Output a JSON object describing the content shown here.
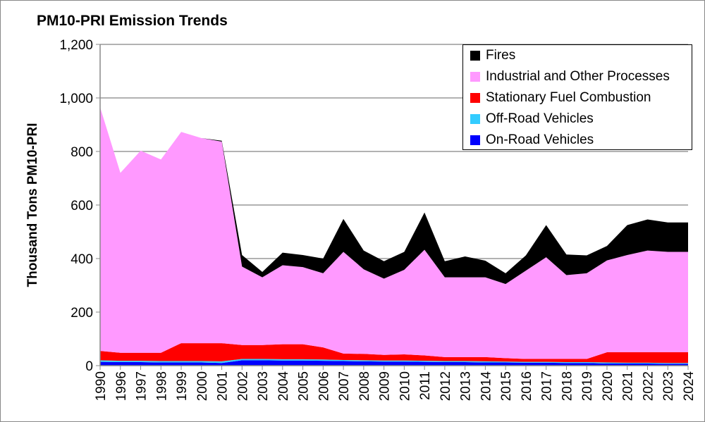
{
  "chart_data": {
    "type": "area",
    "stacked": true,
    "title": "PM10-PRI Emission Trends",
    "xlabel": "",
    "ylabel": "Thousand Tons PM10-PRI",
    "ylim": [
      0,
      1200
    ],
    "yticks": [
      "0",
      "200",
      "400",
      "600",
      "800",
      "1,000",
      "1,200"
    ],
    "ytick_values": [
      0,
      200,
      400,
      600,
      800,
      1000,
      1200
    ],
    "grid": true,
    "legend_position": "top-right",
    "categories": [
      "1990",
      "1996",
      "1997",
      "1998",
      "1999",
      "2000",
      "2001",
      "2002",
      "2003",
      "2004",
      "2005",
      "2006",
      "2007",
      "2008",
      "2009",
      "2010",
      "2011",
      "2012",
      "2013",
      "2014",
      "2015",
      "2016",
      "2017",
      "2018",
      "2019",
      "2020",
      "2021",
      "2022",
      "2023",
      "2024"
    ],
    "series": [
      {
        "name": "On-Road Vehicles",
        "color": "#0000FF",
        "values": [
          14,
          13,
          13,
          12,
          12,
          12,
          10,
          20,
          20,
          19,
          19,
          18,
          17,
          16,
          15,
          15,
          14,
          13,
          13,
          12,
          12,
          11,
          11,
          10,
          10,
          8,
          8,
          8,
          7,
          7
        ]
      },
      {
        "name": "Off-Road Vehicles",
        "color": "#33CCFF",
        "values": [
          6,
          5,
          5,
          5,
          5,
          5,
          6,
          5,
          5,
          5,
          5,
          5,
          4,
          4,
          4,
          4,
          4,
          4,
          4,
          4,
          3,
          3,
          3,
          3,
          3,
          4,
          3,
          3,
          3,
          3
        ]
      },
      {
        "name": "Stationary Fuel Combustion",
        "color": "#FF0000",
        "values": [
          35,
          30,
          30,
          31,
          67,
          67,
          68,
          52,
          52,
          56,
          56,
          45,
          24,
          24,
          21,
          23,
          20,
          15,
          15,
          16,
          13,
          11,
          11,
          12,
          12,
          38,
          39,
          39,
          40,
          40
        ]
      },
      {
        "name": "Industrial and Other Processes",
        "color": "#FF99FF",
        "values": [
          910,
          672,
          755,
          722,
          789,
          766,
          753,
          293,
          253,
          295,
          288,
          277,
          380,
          316,
          285,
          316,
          395,
          298,
          298,
          298,
          277,
          330,
          380,
          313,
          320,
          343,
          363,
          380,
          375,
          375
        ]
      },
      {
        "name": "Fires",
        "color": "#000000",
        "values": [
          0,
          0,
          0,
          0,
          0,
          0,
          3,
          43,
          20,
          47,
          45,
          55,
          123,
          70,
          65,
          67,
          139,
          60,
          78,
          62,
          40,
          57,
          120,
          77,
          67,
          54,
          112,
          116,
          110,
          110
        ]
      }
    ],
    "legend_order": [
      "Fires",
      "Industrial and Other Processes",
      "Stationary Fuel Combustion",
      "Off-Road Vehicles",
      "On-Road Vehicles"
    ]
  }
}
